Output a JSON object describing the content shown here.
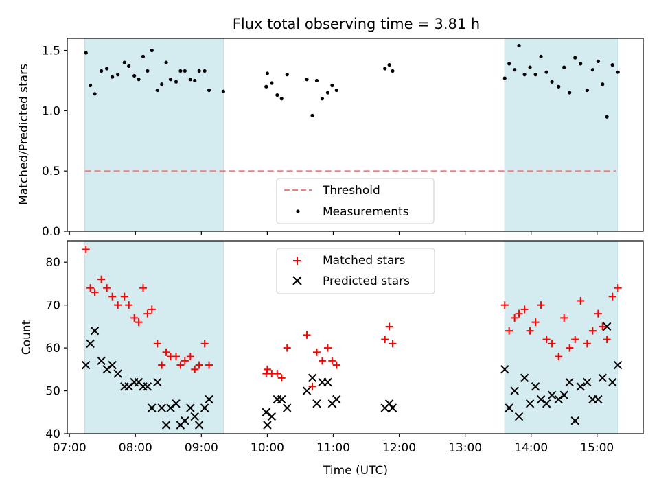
{
  "figure": {
    "title": "Flux total observing time = 3.81 h"
  },
  "chart_data": [
    {
      "type": "scatter",
      "panel": "top",
      "title": "Flux total observing time = 3.81 h",
      "xlabel": "",
      "ylabel": "Matched/Predicted stars",
      "xlim": [
        "06:58",
        "15:42"
      ],
      "ylim": [
        0,
        1.6
      ],
      "yticks": [
        0.0,
        0.5,
        1.0,
        1.5
      ],
      "ytick_labels": [
        "0.0",
        "0.5",
        "1.0",
        "1.5"
      ],
      "legend_placement": "lower center",
      "shaded_intervals": [
        [
          "07:14",
          "09:20"
        ],
        [
          "13:36",
          "15:19"
        ]
      ],
      "threshold": {
        "name": "Threshold",
        "value": 0.5,
        "x_range": [
          "07:14",
          "15:17"
        ],
        "color": "#f08080",
        "style": "dashed"
      },
      "series": [
        {
          "name": "Measurements",
          "marker": "dot",
          "color": "#000000",
          "x": [
            "07:15",
            "07:19",
            "07:23",
            "07:29",
            "07:34",
            "07:39",
            "07:44",
            "07:50",
            "07:54",
            "07:59",
            "08:03",
            "08:07",
            "08:11",
            "08:15",
            "08:20",
            "08:24",
            "08:28",
            "08:32",
            "08:37",
            "08:41",
            "08:45",
            "08:50",
            "08:54",
            "08:58",
            "09:03",
            "09:07",
            "09:20",
            "09:59",
            "10:00",
            "10:04",
            "10:09",
            "10:13",
            "10:18",
            "10:36",
            "10:41",
            "10:45",
            "10:50",
            "10:55",
            "10:59",
            "11:03",
            "11:47",
            "11:51",
            "11:54",
            "13:36",
            "13:40",
            "13:45",
            "13:49",
            "13:54",
            "13:59",
            "14:04",
            "14:09",
            "14:14",
            "14:19",
            "14:25",
            "14:30",
            "14:35",
            "14:40",
            "14:45",
            "14:51",
            "14:56",
            "15:01",
            "15:05",
            "15:09",
            "15:14",
            "15:19"
          ],
          "y": [
            1.48,
            1.21,
            1.14,
            1.33,
            1.35,
            1.28,
            1.3,
            1.4,
            1.37,
            1.29,
            1.26,
            1.45,
            1.33,
            1.5,
            1.17,
            1.22,
            1.4,
            1.26,
            1.24,
            1.33,
            1.33,
            1.26,
            1.25,
            1.33,
            1.33,
            1.17,
            1.16,
            1.2,
            1.31,
            1.23,
            1.13,
            1.1,
            1.3,
            1.26,
            0.96,
            1.25,
            1.1,
            1.15,
            1.21,
            1.17,
            1.35,
            1.38,
            1.33,
            1.27,
            1.39,
            1.34,
            1.54,
            1.3,
            1.36,
            1.3,
            1.45,
            1.32,
            1.24,
            1.2,
            1.36,
            1.15,
            1.44,
            1.39,
            1.17,
            1.34,
            1.41,
            1.22,
            0.95,
            1.38,
            1.32
          ]
        }
      ]
    },
    {
      "type": "scatter",
      "panel": "bottom",
      "xlabel": "Time (UTC)",
      "ylabel": "Count",
      "xlim": [
        "06:58",
        "15:42"
      ],
      "ylim": [
        40,
        85
      ],
      "xticks": [
        "07:00",
        "08:00",
        "09:00",
        "10:00",
        "11:00",
        "12:00",
        "13:00",
        "14:00",
        "15:00"
      ],
      "yticks": [
        40,
        50,
        60,
        70,
        80
      ],
      "ytick_labels": [
        "40",
        "50",
        "60",
        "70",
        "80"
      ],
      "legend_placement": "upper center",
      "shaded_intervals": [
        [
          "07:14",
          "09:20"
        ],
        [
          "13:36",
          "15:19"
        ]
      ],
      "series": [
        {
          "name": "Matched stars",
          "marker": "+",
          "color": "#ff0000",
          "points": [
            [
              "07:15",
              83
            ],
            [
              "07:19",
              74
            ],
            [
              "07:23",
              73
            ],
            [
              "07:29",
              76
            ],
            [
              "07:34",
              74
            ],
            [
              "07:39",
              72
            ],
            [
              "07:44",
              70
            ],
            [
              "07:50",
              72
            ],
            [
              "07:54",
              70
            ],
            [
              "07:59",
              67
            ],
            [
              "08:03",
              66
            ],
            [
              "08:07",
              74
            ],
            [
              "08:11",
              68
            ],
            [
              "08:15",
              69
            ],
            [
              "08:20",
              61
            ],
            [
              "08:24",
              56
            ],
            [
              "08:28",
              59
            ],
            [
              "08:32",
              58
            ],
            [
              "08:37",
              58
            ],
            [
              "08:41",
              56
            ],
            [
              "08:45",
              57
            ],
            [
              "08:50",
              58
            ],
            [
              "08:54",
              55
            ],
            [
              "08:58",
              56
            ],
            [
              "09:03",
              61
            ],
            [
              "09:07",
              56
            ],
            [
              "09:59",
              54
            ],
            [
              "10:00",
              55
            ],
            [
              "10:04",
              54
            ],
            [
              "10:09",
              54
            ],
            [
              "10:13",
              53
            ],
            [
              "10:18",
              60
            ],
            [
              "10:36",
              63
            ],
            [
              "10:41",
              51
            ],
            [
              "10:45",
              59
            ],
            [
              "10:50",
              57
            ],
            [
              "10:55",
              60
            ],
            [
              "10:59",
              57
            ],
            [
              "11:03",
              56
            ],
            [
              "11:47",
              62
            ],
            [
              "11:51",
              65
            ],
            [
              "11:54",
              61
            ],
            [
              "13:36",
              70
            ],
            [
              "13:40",
              64
            ],
            [
              "13:45",
              67
            ],
            [
              "13:49",
              68
            ],
            [
              "13:54",
              69
            ],
            [
              "13:59",
              64
            ],
            [
              "14:04",
              66
            ],
            [
              "14:09",
              70
            ],
            [
              "14:14",
              62
            ],
            [
              "14:19",
              61
            ],
            [
              "14:25",
              58
            ],
            [
              "14:30",
              67
            ],
            [
              "14:35",
              60
            ],
            [
              "14:40",
              62
            ],
            [
              "14:45",
              71
            ],
            [
              "14:51",
              61
            ],
            [
              "14:56",
              64
            ],
            [
              "15:01",
              68
            ],
            [
              "15:05",
              65
            ],
            [
              "15:09",
              62
            ],
            [
              "15:14",
              72
            ],
            [
              "15:19",
              74
            ]
          ]
        },
        {
          "name": "Predicted stars",
          "marker": "x",
          "color": "#000000",
          "points": [
            [
              "07:15",
              56
            ],
            [
              "07:19",
              61
            ],
            [
              "07:23",
              64
            ],
            [
              "07:29",
              57
            ],
            [
              "07:34",
              55
            ],
            [
              "07:39",
              56
            ],
            [
              "07:44",
              54
            ],
            [
              "07:50",
              51
            ],
            [
              "07:54",
              51
            ],
            [
              "07:59",
              52
            ],
            [
              "08:03",
              52
            ],
            [
              "08:07",
              51
            ],
            [
              "08:11",
              51
            ],
            [
              "08:15",
              46
            ],
            [
              "08:20",
              52
            ],
            [
              "08:24",
              46
            ],
            [
              "08:28",
              42
            ],
            [
              "08:32",
              46
            ],
            [
              "08:37",
              47
            ],
            [
              "08:41",
              42
            ],
            [
              "08:45",
              43
            ],
            [
              "08:50",
              46
            ],
            [
              "08:54",
              44
            ],
            [
              "08:58",
              42
            ],
            [
              "09:03",
              46
            ],
            [
              "09:07",
              48
            ],
            [
              "09:59",
              45
            ],
            [
              "10:00",
              42
            ],
            [
              "10:04",
              44
            ],
            [
              "10:09",
              48
            ],
            [
              "10:13",
              48
            ],
            [
              "10:18",
              46
            ],
            [
              "10:36",
              50
            ],
            [
              "10:41",
              53
            ],
            [
              "10:45",
              47
            ],
            [
              "10:50",
              52
            ],
            [
              "10:55",
              52
            ],
            [
              "10:59",
              47
            ],
            [
              "11:03",
              48
            ],
            [
              "11:47",
              46
            ],
            [
              "11:51",
              47
            ],
            [
              "11:54",
              46
            ],
            [
              "13:36",
              55
            ],
            [
              "13:40",
              46
            ],
            [
              "13:45",
              50
            ],
            [
              "13:49",
              44
            ],
            [
              "13:54",
              53
            ],
            [
              "13:59",
              47
            ],
            [
              "14:04",
              51
            ],
            [
              "14:09",
              48
            ],
            [
              "14:14",
              47
            ],
            [
              "14:19",
              49
            ],
            [
              "14:25",
              48
            ],
            [
              "14:30",
              49
            ],
            [
              "14:35",
              52
            ],
            [
              "14:40",
              43
            ],
            [
              "14:45",
              51
            ],
            [
              "14:51",
              52
            ],
            [
              "14:56",
              48
            ],
            [
              "15:01",
              48
            ],
            [
              "15:05",
              53
            ],
            [
              "15:09",
              65
            ],
            [
              "15:14",
              52
            ],
            [
              "15:19",
              56
            ]
          ]
        }
      ]
    }
  ],
  "legends": {
    "top": [
      "Threshold",
      "Measurements"
    ],
    "bottom": [
      "Matched stars",
      "Predicted stars"
    ]
  },
  "colors": {
    "shade": "#d4ebf0",
    "threshold": "#f08080",
    "matched": "#ff0000",
    "predicted": "#000000"
  }
}
